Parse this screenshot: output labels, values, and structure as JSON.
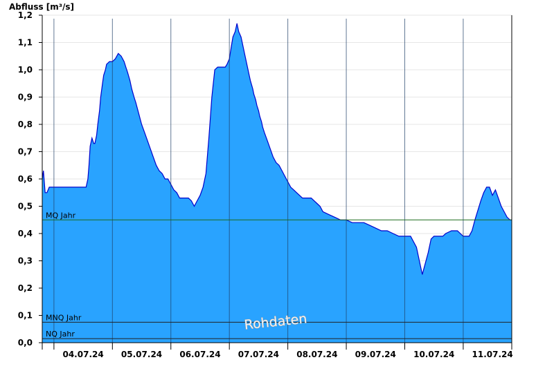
{
  "chart_data": {
    "type": "area",
    "ylabel": "Abfluss [m³/s]",
    "ylim": [
      0.0,
      1.2
    ],
    "yticks": [
      "0,0",
      "0,1",
      "0,2",
      "0,3",
      "0,4",
      "0,5",
      "0,6",
      "0,7",
      "0,8",
      "0,9",
      "1,0",
      "1,1",
      "1,2"
    ],
    "xlim": [
      3.3,
      11.33
    ],
    "xticks": [
      {
        "x": 4,
        "label": "04.07.24"
      },
      {
        "x": 5,
        "label": "05.07.24"
      },
      {
        "x": 6,
        "label": "06.07.24"
      },
      {
        "x": 7,
        "label": "07.07.24"
      },
      {
        "x": 8,
        "label": "08.07.24"
      },
      {
        "x": 9,
        "label": "09.07.24"
      },
      {
        "x": 10,
        "label": "10.07.24"
      },
      {
        "x": 11,
        "label": "11.07.24"
      }
    ],
    "grid": true,
    "series_color": "#29a3ff",
    "series_line_color": "#0000cc",
    "series": [
      {
        "x": [
          3.3,
          3.32,
          3.35,
          3.38,
          3.42,
          3.5,
          3.7,
          3.9,
          4.0,
          4.05,
          4.08,
          4.1,
          4.12,
          4.15,
          4.18,
          4.2,
          4.23,
          4.25,
          4.28,
          4.3,
          4.33,
          4.35,
          4.38,
          4.4,
          4.45,
          4.5,
          4.55,
          4.6,
          4.65,
          4.7,
          4.73,
          4.76,
          4.8,
          4.83,
          4.87,
          4.9,
          4.95,
          5.0,
          5.05,
          5.1,
          5.15,
          5.2,
          5.25,
          5.3,
          5.35,
          5.4,
          5.45,
          5.5,
          5.55,
          5.6,
          5.65,
          5.7,
          5.75,
          5.8,
          5.85,
          5.9,
          5.95,
          6.0,
          6.05,
          6.1,
          6.15,
          6.2,
          6.25,
          6.3,
          6.35,
          6.4,
          6.43,
          6.46,
          6.5,
          6.53,
          6.56,
          6.6,
          6.63,
          6.66,
          6.7,
          6.73,
          6.76,
          6.8,
          6.83,
          6.86,
          6.9,
          6.92,
          6.95,
          6.97,
          7.0,
          7.02,
          7.05,
          7.07,
          7.1,
          7.15,
          7.2,
          7.25,
          7.3,
          7.35,
          7.4,
          7.45,
          7.5,
          7.55,
          7.6,
          7.65,
          7.7,
          7.75,
          7.8,
          7.85,
          7.9,
          7.95,
          8.0,
          8.05,
          8.1,
          8.2,
          8.3,
          8.4,
          8.5,
          8.6,
          8.7,
          8.8,
          8.9,
          9.0,
          9.1,
          9.2,
          9.3,
          9.4,
          9.5,
          9.6,
          9.7,
          9.8,
          9.9,
          9.95,
          10.0,
          10.05,
          10.1,
          10.15,
          10.2,
          10.3,
          10.4,
          10.5,
          10.55,
          10.6,
          10.65,
          10.7,
          10.8,
          10.85,
          10.9,
          10.95,
          11.0,
          11.05,
          11.1,
          11.15,
          11.2,
          11.25,
          11.3,
          11.33
        ],
        "y": [
          0.6,
          0.63,
          0.55,
          0.55,
          0.57,
          0.57,
          0.57,
          0.57,
          0.57,
          0.57,
          0.6,
          0.65,
          0.72,
          0.75,
          0.73,
          0.73,
          0.76,
          0.8,
          0.85,
          0.9,
          0.95,
          0.98,
          1.0,
          1.02,
          1.03,
          1.03,
          1.04,
          1.06,
          1.05,
          1.03,
          1.01,
          0.99,
          0.96,
          0.93,
          0.9,
          0.88,
          0.84,
          0.8,
          0.77,
          0.74,
          0.71,
          0.68,
          0.65,
          0.63,
          0.62,
          0.6,
          0.6,
          0.58,
          0.56,
          0.55,
          0.53,
          0.53,
          0.53,
          0.53,
          0.52,
          0.5,
          0.52,
          0.54,
          0.57,
          0.62,
          0.75,
          0.9,
          1.0,
          1.01,
          1.01,
          1.01,
          1.01,
          1.02,
          1.04,
          1.08,
          1.12,
          1.14,
          1.17,
          1.14,
          1.12,
          1.09,
          1.06,
          1.02,
          0.99,
          0.96,
          0.93,
          0.91,
          0.89,
          0.87,
          0.85,
          0.83,
          0.81,
          0.79,
          0.77,
          0.74,
          0.71,
          0.68,
          0.66,
          0.65,
          0.63,
          0.61,
          0.59,
          0.57,
          0.56,
          0.55,
          0.54,
          0.53,
          0.53,
          0.53,
          0.53,
          0.52,
          0.51,
          0.5,
          0.48,
          0.47,
          0.46,
          0.45,
          0.45,
          0.44,
          0.44,
          0.44,
          0.43,
          0.42,
          0.41,
          0.41,
          0.4,
          0.39,
          0.39,
          0.39,
          0.35,
          0.25,
          0.33,
          0.38,
          0.39,
          0.39,
          0.39,
          0.39,
          0.4,
          0.41,
          0.41,
          0.39,
          0.39,
          0.39,
          0.41,
          0.45,
          0.52,
          0.55,
          0.57,
          0.57,
          0.54,
          0.56,
          0.53,
          0.5,
          0.48,
          0.46,
          0.45,
          0.45
        ]
      }
    ],
    "reference_lines": [
      {
        "label": "MQ Jahr",
        "y": 0.45,
        "color": "#1a6b1a"
      },
      {
        "label": "MNQ Jahr",
        "y": 0.075,
        "color": "#222222"
      },
      {
        "label": "NQ Jahr",
        "y": 0.015,
        "color": "#222222"
      }
    ],
    "watermark": "Rohdaten"
  }
}
